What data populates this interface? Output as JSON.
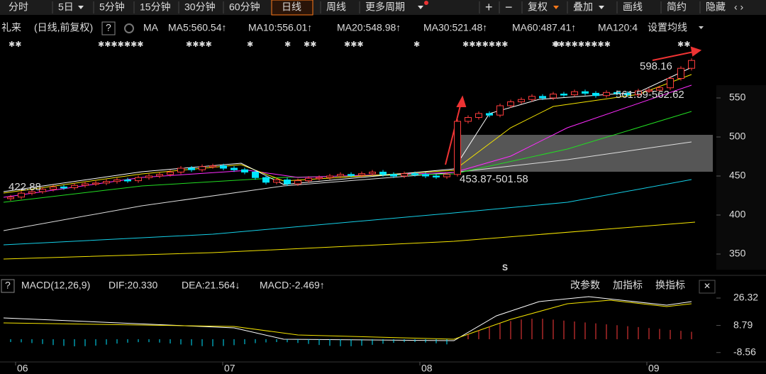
{
  "toolbar": {
    "periods": [
      "分时",
      "5日",
      "5分钟",
      "15分钟",
      "30分钟",
      "60分钟",
      "日线",
      "周线",
      "更多周期"
    ],
    "active_index": 6,
    "tools": [
      "+",
      "−",
      "复权",
      "叠加",
      "画线",
      "简约",
      "隐藏"
    ]
  },
  "legend": {
    "symbol": "礼来",
    "mode": "(日线,前复权)",
    "help": "?",
    "ma_label": "MA",
    "ma": [
      {
        "text": "MA5:560.54↑",
        "color": "#ffffff"
      },
      {
        "text": "MA10:556.01↑",
        "color": "#f5e400"
      },
      {
        "text": "MA20:548.98↑",
        "color": "#ff2bff"
      },
      {
        "text": "MA30:521.48↑",
        "color": "#22dd22"
      },
      {
        "text": "MA60:487.41↑",
        "color": "#dddddd"
      },
      {
        "text": "MA120:4",
        "color": "#14d0e8"
      }
    ],
    "settings": "设置均线"
  },
  "markers": [
    "✱✱",
    "✱✱✱✱✱✱✱",
    "✱✱✱✱",
    "✱",
    "✱",
    "✱✱",
    "✱✱✱",
    "✱",
    "✱✱✱✱✱✱✱",
    "✱",
    "✱✱✱✱✱✱✱✱✱",
    "✱✱"
  ],
  "price_axis": {
    "ticks": [
      550,
      500,
      450,
      400,
      350
    ]
  },
  "price_chart": {
    "closes": [
      423,
      428,
      430,
      433,
      436,
      435,
      438,
      440,
      441,
      443,
      445,
      444,
      448,
      450,
      452,
      455,
      460,
      458,
      462,
      463,
      460,
      458,
      455,
      448,
      442,
      445,
      440,
      444,
      447,
      448,
      450,
      452,
      451,
      453,
      455,
      452,
      450,
      453,
      452,
      450,
      449,
      452,
      520,
      525,
      530,
      528,
      540,
      545,
      548,
      552,
      550,
      555,
      554,
      558,
      556,
      553,
      557,
      556,
      554,
      559,
      560,
      563,
      575,
      588,
      598
    ],
    "annotations": [
      "598.16",
      "561.59-562.62",
      "453.87-501.58",
      "422.88"
    ],
    "signal": "S"
  },
  "macd": {
    "help": "?",
    "name": "MACD(12,26,9)",
    "dif": "DIF:20.330",
    "dea": "DEA:21.564↓",
    "macd": "MACD:-2.469↑",
    "buttons": [
      "改参数",
      "加指标",
      "换指标"
    ],
    "ticks": [
      26.32,
      8.79,
      -8.56
    ]
  },
  "months": [
    "06",
    "07",
    "08",
    "09"
  ]
}
